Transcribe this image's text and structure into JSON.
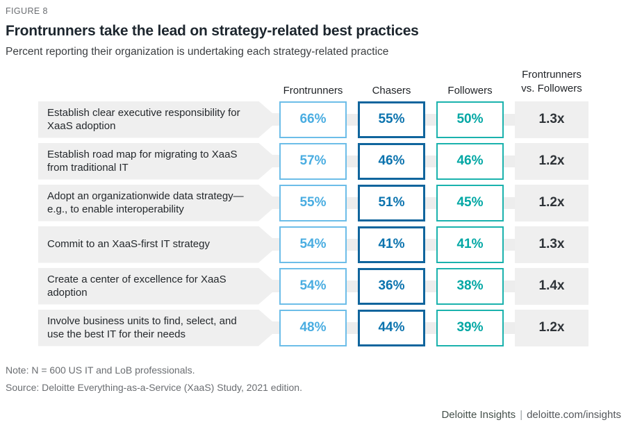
{
  "figure_label": "FIGURE 8",
  "title": "Frontrunners take the lead on strategy-related best practices",
  "subtitle": "Percent reporting their organization is undertaking each strategy-related practice",
  "columns": [
    "Frontrunners",
    "Chasers",
    "Followers"
  ],
  "ratio_column_header": {
    "line1": "Frontrunners",
    "line2": "vs. Followers"
  },
  "rows": [
    {
      "label": "Establish clear executive responsibility for XaaS adoption",
      "frontrunners": "66%",
      "chasers": "55%",
      "followers": "50%",
      "ratio": "1.3x"
    },
    {
      "label": "Establish road map for migrating to XaaS from traditional IT",
      "frontrunners": "57%",
      "chasers": "46%",
      "followers": "46%",
      "ratio": "1.2x"
    },
    {
      "label": "Adopt an organizationwide data strategy—e.g., to enable interoperability",
      "frontrunners": "55%",
      "chasers": "51%",
      "followers": "45%",
      "ratio": "1.2x"
    },
    {
      "label": "Commit to an XaaS-first IT strategy",
      "frontrunners": "54%",
      "chasers": "41%",
      "followers": "41%",
      "ratio": "1.3x"
    },
    {
      "label": "Create a center of excellence for XaaS adoption",
      "frontrunners": "54%",
      "chasers": "36%",
      "followers": "38%",
      "ratio": "1.4x"
    },
    {
      "label": "Involve business units to find, select, and use the best IT for their needs",
      "frontrunners": "48%",
      "chasers": "44%",
      "followers": "39%",
      "ratio": "1.2x"
    }
  ],
  "chart_data": {
    "type": "table",
    "title": "Frontrunners take the lead on strategy-related best practices",
    "subtitle": "Percent reporting their organization is undertaking each strategy-related practice",
    "categories": [
      "Establish clear executive responsibility for XaaS adoption",
      "Establish road map for migrating to XaaS from traditional IT",
      "Adopt an organizationwide data strategy—e.g., to enable interoperability",
      "Commit to an XaaS-first IT strategy",
      "Create a center of excellence for XaaS adoption",
      "Involve business units to find, select, and use the best IT for their needs"
    ],
    "series": [
      {
        "name": "Frontrunners",
        "values": [
          66,
          57,
          55,
          54,
          54,
          48
        ],
        "unit": "%"
      },
      {
        "name": "Chasers",
        "values": [
          55,
          46,
          51,
          41,
          36,
          44
        ],
        "unit": "%"
      },
      {
        "name": "Followers",
        "values": [
          50,
          46,
          45,
          41,
          38,
          39
        ],
        "unit": "%"
      },
      {
        "name": "Frontrunners vs. Followers",
        "values": [
          "1.3x",
          "1.2x",
          "1.2x",
          "1.3x",
          "1.4x",
          "1.2x"
        ]
      }
    ]
  },
  "note": "Note: N = 600 US IT and LoB professionals.",
  "source": "Source: Deloitte Everything-as-a-Service (XaaS) Study, 2021 edition.",
  "footer": {
    "brand": "Deloitte Insights",
    "separator": "|",
    "url": "deloitte.com/insights"
  },
  "colors": {
    "frontrunners_border": "#6cbde8",
    "frontrunners_text": "#4aade1",
    "chasers_border": "#10659d",
    "chasers_text": "#0b73ae",
    "followers_border": "#1ab2ad",
    "followers_text": "#02a7a4",
    "ratio_text": "#2e3338",
    "label_bg": "#efefef",
    "connector": "#ededed",
    "brand_green": "#44504a"
  }
}
